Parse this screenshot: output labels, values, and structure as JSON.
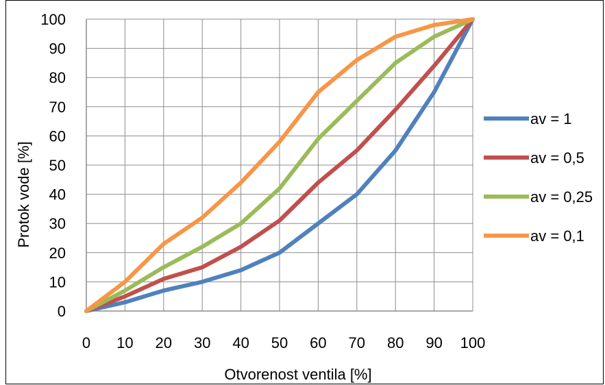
{
  "chart_data": {
    "type": "line",
    "xlabel": "Otvorenost ventila [%]",
    "ylabel": "Protok vode [%]",
    "xlim": [
      0,
      100
    ],
    "ylim": [
      0,
      100
    ],
    "x_ticks": [
      "0",
      "10",
      "20",
      "30",
      "40",
      "50",
      "60",
      "70",
      "80",
      "90",
      "100"
    ],
    "y_ticks": [
      "0",
      "10",
      "20",
      "30",
      "40",
      "50",
      "60",
      "70",
      "80",
      "90",
      "100"
    ],
    "grid": true,
    "legend_position": "right",
    "x": [
      0,
      10,
      20,
      30,
      40,
      50,
      60,
      70,
      80,
      90,
      100
    ],
    "series": [
      {
        "name": "av = 1",
        "color": "#4F81BD",
        "values": [
          0,
          3,
          7,
          10,
          14,
          20,
          30,
          40,
          55,
          75,
          100
        ]
      },
      {
        "name": "av = 0,5",
        "color": "#C0504D",
        "values": [
          0,
          5,
          11,
          15,
          22,
          31,
          44,
          55,
          69,
          84,
          100
        ]
      },
      {
        "name": "av = 0,25",
        "color": "#9BBB59",
        "values": [
          0,
          7,
          15,
          22,
          30,
          42,
          59,
          72,
          85,
          94,
          100
        ]
      },
      {
        "name": "av = 0,1",
        "color": "#F79646",
        "values": [
          0,
          10,
          23,
          32,
          44,
          58,
          75,
          86,
          94,
          98,
          100
        ]
      }
    ]
  }
}
